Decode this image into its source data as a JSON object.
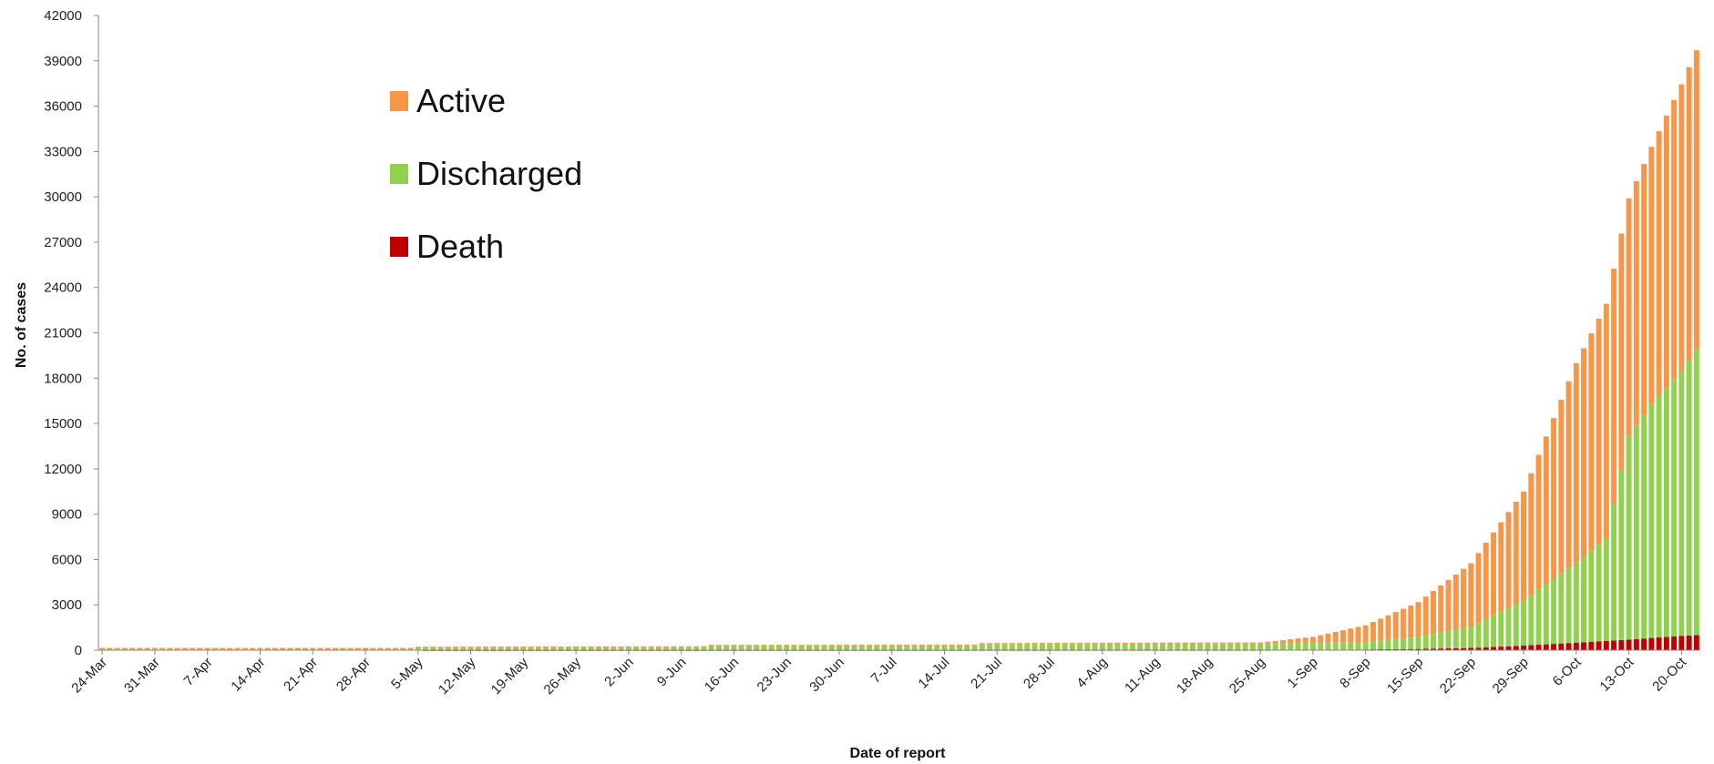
{
  "chart_data": {
    "type": "bar",
    "stacked": true,
    "title": "",
    "xlabel": "Date of report",
    "ylabel": "No. of cases",
    "ylim": [
      0,
      42000
    ],
    "y_ticks": [
      0,
      3000,
      6000,
      9000,
      12000,
      15000,
      18000,
      21000,
      24000,
      27000,
      30000,
      33000,
      36000,
      39000,
      42000
    ],
    "x_tick_labels": [
      "24-Mar",
      "31-Mar",
      "7-Apr",
      "14-Apr",
      "21-Apr",
      "28-Apr",
      "5-May",
      "12-May",
      "19-May",
      "26-May",
      "2-Jun",
      "9-Jun",
      "16-Jun",
      "23-Jun",
      "30-Jun",
      "7-Jul",
      "14-Jul",
      "21-Jul",
      "28-Jul",
      "4-Aug",
      "11-Aug",
      "18-Aug",
      "25-Aug",
      "1-Sep",
      "8-Sep",
      "15-Sep",
      "22-Sep",
      "29-Sep",
      "6-Oct",
      "13-Oct",
      "20-Oct"
    ],
    "legend_position": "upper-left",
    "grid": false,
    "colors": {
      "Active": "#F79646",
      "Discharged": "#92D050",
      "Death": "#C00000"
    },
    "series": [
      {
        "name": "Death",
        "values": [
          {
            "x": "24-Mar",
            "y": 0
          },
          {
            "x": "5-May",
            "y": 0
          },
          {
            "x": "25-Aug",
            "y": 10
          },
          {
            "x": "1-Sep",
            "y": 30
          },
          {
            "x": "8-Sep",
            "y": 50
          },
          {
            "x": "15-Sep",
            "y": 80
          },
          {
            "x": "22-Sep",
            "y": 150
          },
          {
            "x": "29-Sep",
            "y": 300
          },
          {
            "x": "6-Oct",
            "y": 500
          },
          {
            "x": "13-Oct",
            "y": 700
          },
          {
            "x": "20-Oct",
            "y": 950
          },
          {
            "x": "22-Oct",
            "y": 1000
          }
        ]
      },
      {
        "name": "Discharged",
        "values": [
          {
            "x": "24-Mar",
            "y": 50
          },
          {
            "x": "4-May",
            "y": 60
          },
          {
            "x": "5-May",
            "y": 200
          },
          {
            "x": "12-Jun",
            "y": 210
          },
          {
            "x": "13-Jun",
            "y": 300
          },
          {
            "x": "18-Jul",
            "y": 310
          },
          {
            "x": "19-Jul",
            "y": 400
          },
          {
            "x": "25-Aug",
            "y": 420
          },
          {
            "x": "1-Sep",
            "y": 450
          },
          {
            "x": "8-Sep",
            "y": 500
          },
          {
            "x": "15-Sep",
            "y": 800
          },
          {
            "x": "22-Sep",
            "y": 1400
          },
          {
            "x": "29-Sep",
            "y": 3000
          },
          {
            "x": "6-Oct",
            "y": 5300
          },
          {
            "x": "10-Oct",
            "y": 6800
          },
          {
            "x": "13-Oct",
            "y": 13500
          },
          {
            "x": "16-Oct",
            "y": 15500
          },
          {
            "x": "20-Oct",
            "y": 17500
          },
          {
            "x": "22-Oct",
            "y": 18900
          }
        ]
      },
      {
        "name": "Active",
        "values": [
          {
            "x": "24-Mar",
            "y": 100
          },
          {
            "x": "4-May",
            "y": 90
          },
          {
            "x": "5-May",
            "y": 30
          },
          {
            "x": "25-Aug",
            "y": 80
          },
          {
            "x": "1-Sep",
            "y": 400
          },
          {
            "x": "8-Sep",
            "y": 1100
          },
          {
            "x": "15-Sep",
            "y": 2300
          },
          {
            "x": "22-Sep",
            "y": 4200
          },
          {
            "x": "29-Sep",
            "y": 7200
          },
          {
            "x": "6-Oct",
            "y": 13200
          },
          {
            "x": "10-Oct",
            "y": 15500
          },
          {
            "x": "13-Oct",
            "y": 15700
          },
          {
            "x": "16-Oct",
            "y": 17000
          },
          {
            "x": "20-Oct",
            "y": 19000
          },
          {
            "x": "22-Oct",
            "y": 19800
          }
        ]
      }
    ]
  }
}
